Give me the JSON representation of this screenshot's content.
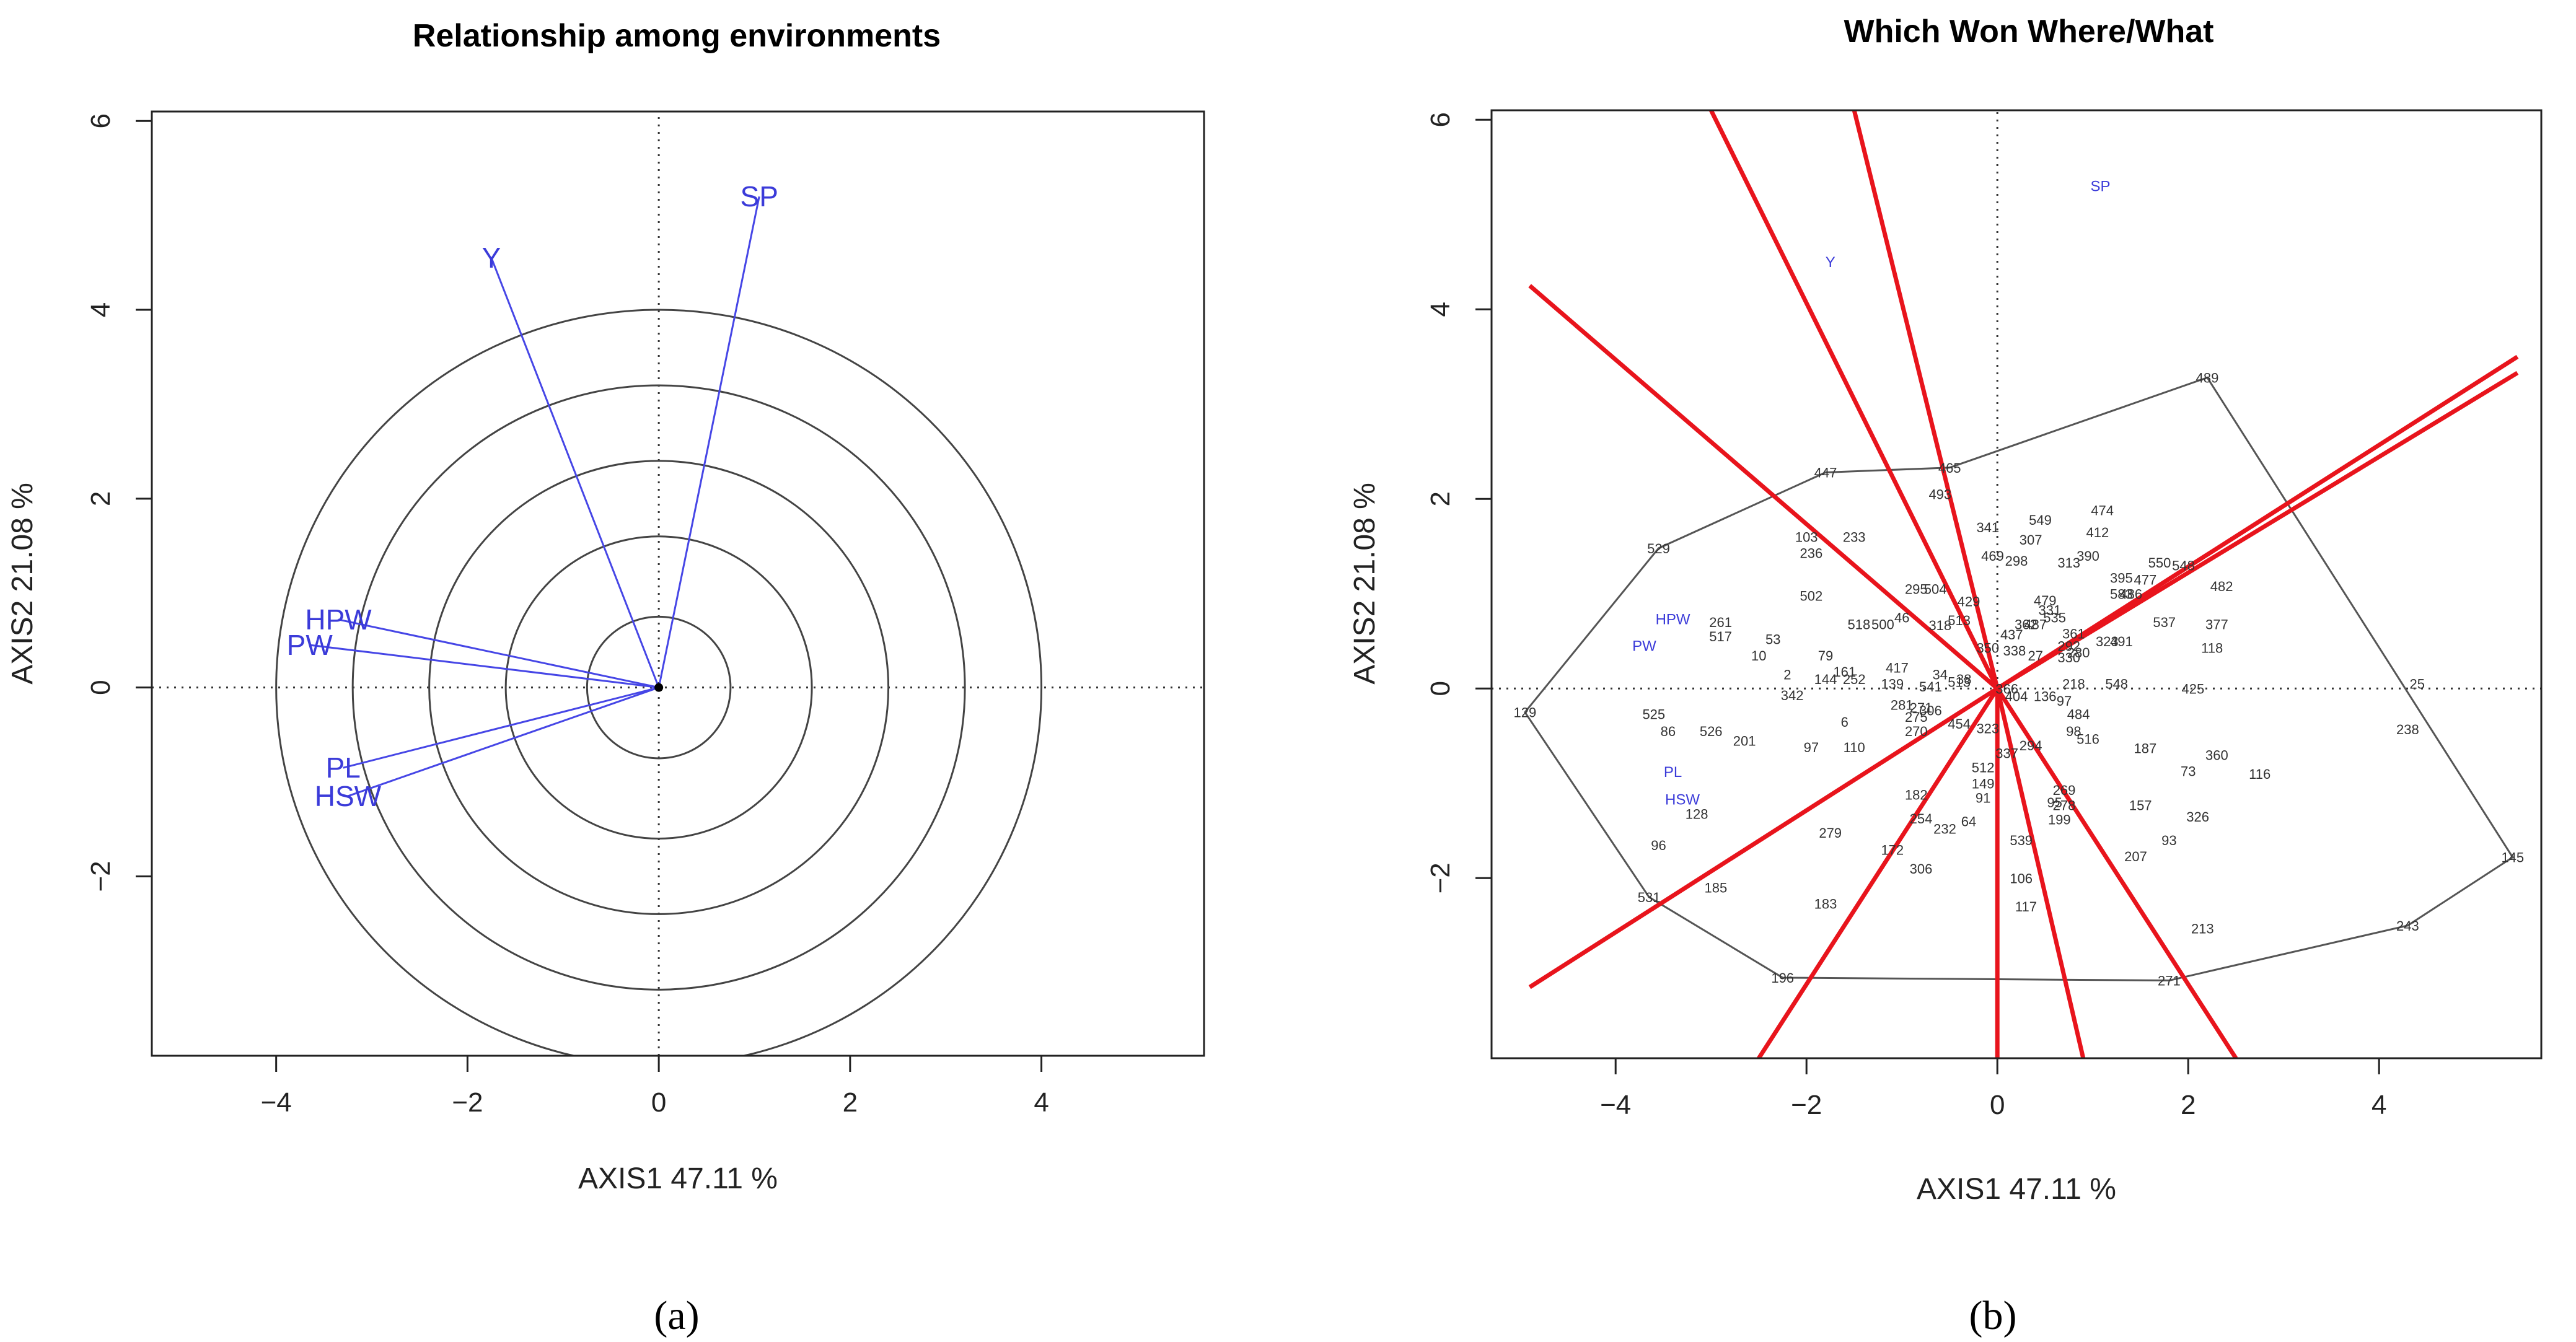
{
  "colors": {
    "env": "#4646e6",
    "sector": "#e8141c",
    "circle": "#444444",
    "frame": "#222222",
    "hull": "#555555"
  },
  "chart_data": [
    {
      "id": "a",
      "type": "scatter",
      "title": "Relationship among environments",
      "xlabel": "AXIS1 47.11 %",
      "ylabel": "AXIS2 21.08 %",
      "subfig_label": "(a)",
      "xlim": [
        -5.3,
        5.7
      ],
      "ylim": [
        -3.9,
        6.1
      ],
      "xticks": [
        -4,
        -2,
        0,
        2,
        4
      ],
      "yticks": [
        -2,
        0,
        2,
        4,
        6
      ],
      "circle_radii": [
        0.75,
        1.6,
        2.4,
        3.2,
        4.0
      ],
      "environments": [
        {
          "label": "SP",
          "x": 1.05,
          "y": 5.2
        },
        {
          "label": "Y",
          "x": -1.75,
          "y": 4.55
        },
        {
          "label": "HPW",
          "x": -3.35,
          "y": 0.72
        },
        {
          "label": "PW",
          "x": -3.65,
          "y": 0.45
        },
        {
          "label": "PL",
          "x": -3.3,
          "y": -0.85
        },
        {
          "label": "HSW",
          "x": -3.25,
          "y": -1.15
        }
      ]
    },
    {
      "id": "b",
      "type": "scatter",
      "title": "Which Won Where/What",
      "xlabel": "AXIS1 47.11 %",
      "ylabel": "AXIS2 21.08 %",
      "subfig_label": "(b)",
      "xlim": [
        -5.3,
        5.7
      ],
      "ylim": [
        -3.9,
        6.1
      ],
      "xticks": [
        -4,
        -2,
        0,
        2,
        4
      ],
      "yticks": [
        -2,
        0,
        2,
        4,
        6
      ],
      "environments": [
        {
          "label": "SP",
          "x": 1.08,
          "y": 5.3
        },
        {
          "label": "Y",
          "x": -1.75,
          "y": 4.5
        },
        {
          "label": "HPW",
          "x": -3.4,
          "y": 0.73
        },
        {
          "label": "PW",
          "x": -3.7,
          "y": 0.45
        },
        {
          "label": "PL",
          "x": -3.4,
          "y": -0.88
        },
        {
          "label": "HSW",
          "x": -3.3,
          "y": -1.17
        }
      ],
      "hull": [
        {
          "label": "489",
          "x": 2.2,
          "y": 3.28
        },
        {
          "label": "145",
          "x": 5.4,
          "y": -1.78
        },
        {
          "label": "243",
          "x": 4.3,
          "y": -2.5
        },
        {
          "label": "271",
          "x": 1.8,
          "y": -3.08
        },
        {
          "label": "196",
          "x": -2.25,
          "y": -3.05
        },
        {
          "label": "531",
          "x": -3.65,
          "y": -2.2
        },
        {
          "label": "129",
          "x": -4.95,
          "y": -0.25
        },
        {
          "label": "529",
          "x": -3.55,
          "y": 1.48
        },
        {
          "label": "447",
          "x": -1.8,
          "y": 2.28
        },
        {
          "label": "465",
          "x": -0.5,
          "y": 2.33
        }
      ],
      "sector_rays": [
        {
          "x": -4.9,
          "y": 4.25
        },
        {
          "x": -3.0,
          "y": 6.1
        },
        {
          "x": -1.5,
          "y": 6.1
        },
        {
          "x": 5.45,
          "y": 3.5
        },
        {
          "x": 5.45,
          "y": 3.33
        },
        {
          "x": 2.5,
          "y": -3.9
        },
        {
          "x": 0.9,
          "y": -3.9
        },
        {
          "x": 0.0,
          "y": -3.9
        },
        {
          "x": -2.5,
          "y": -3.9
        },
        {
          "x": -4.9,
          "y": -3.15
        }
      ],
      "genotypes": [
        {
          "label": "489",
          "x": 2.2,
          "y": 3.28
        },
        {
          "label": "145",
          "x": 5.4,
          "y": -1.78
        },
        {
          "label": "243",
          "x": 4.3,
          "y": -2.5
        },
        {
          "label": "271",
          "x": 1.8,
          "y": -3.08
        },
        {
          "label": "196",
          "x": -2.25,
          "y": -3.05
        },
        {
          "label": "531",
          "x": -3.65,
          "y": -2.2
        },
        {
          "label": "129",
          "x": -4.95,
          "y": -0.25
        },
        {
          "label": "529",
          "x": -3.55,
          "y": 1.48
        },
        {
          "label": "447",
          "x": -1.8,
          "y": 2.28
        },
        {
          "label": "465",
          "x": -0.5,
          "y": 2.33
        },
        {
          "label": "493",
          "x": -0.6,
          "y": 2.05
        },
        {
          "label": "549",
          "x": 0.45,
          "y": 1.78
        },
        {
          "label": "474",
          "x": 1.1,
          "y": 1.88
        },
        {
          "label": "341",
          "x": -0.1,
          "y": 1.7
        },
        {
          "label": "412",
          "x": 1.05,
          "y": 1.65
        },
        {
          "label": "307",
          "x": 0.35,
          "y": 1.57
        },
        {
          "label": "103",
          "x": -2.0,
          "y": 1.6
        },
        {
          "label": "233",
          "x": -1.5,
          "y": 1.6
        },
        {
          "label": "236",
          "x": -1.95,
          "y": 1.43
        },
        {
          "label": "469",
          "x": -0.05,
          "y": 1.4
        },
        {
          "label": "298",
          "x": 0.2,
          "y": 1.35
        },
        {
          "label": "313",
          "x": 0.75,
          "y": 1.33
        },
        {
          "label": "390",
          "x": 0.95,
          "y": 1.4
        },
        {
          "label": "550",
          "x": 1.7,
          "y": 1.33
        },
        {
          "label": "548",
          "x": 1.95,
          "y": 1.3
        },
        {
          "label": "395",
          "x": 1.3,
          "y": 1.17
        },
        {
          "label": "477",
          "x": 1.55,
          "y": 1.15
        },
        {
          "label": "482",
          "x": 2.35,
          "y": 1.08
        },
        {
          "label": "502",
          "x": -1.95,
          "y": 0.98
        },
        {
          "label": "295",
          "x": -0.85,
          "y": 1.05
        },
        {
          "label": "504",
          "x": -0.65,
          "y": 1.05
        },
        {
          "label": "429",
          "x": -0.3,
          "y": 0.92
        },
        {
          "label": "479",
          "x": 0.5,
          "y": 0.93
        },
        {
          "label": "583",
          "x": 1.3,
          "y": 1.0
        },
        {
          "label": "486",
          "x": 1.4,
          "y": 1.0
        },
        {
          "label": "331",
          "x": 0.55,
          "y": 0.83
        },
        {
          "label": "535",
          "x": 0.6,
          "y": 0.75
        },
        {
          "label": "537",
          "x": 1.75,
          "y": 0.7
        },
        {
          "label": "377",
          "x": 2.3,
          "y": 0.68
        },
        {
          "label": "261",
          "x": -2.9,
          "y": 0.7
        },
        {
          "label": "517",
          "x": -2.9,
          "y": 0.55
        },
        {
          "label": "518",
          "x": -1.45,
          "y": 0.68
        },
        {
          "label": "500",
          "x": -1.2,
          "y": 0.68
        },
        {
          "label": "46",
          "x": -1.0,
          "y": 0.75
        },
        {
          "label": "318",
          "x": -0.6,
          "y": 0.67
        },
        {
          "label": "513",
          "x": -0.4,
          "y": 0.72
        },
        {
          "label": "362",
          "x": 0.3,
          "y": 0.68
        },
        {
          "label": "487",
          "x": 0.4,
          "y": 0.68
        },
        {
          "label": "437",
          "x": 0.15,
          "y": 0.57
        },
        {
          "label": "361",
          "x": 0.8,
          "y": 0.58
        },
        {
          "label": "323",
          "x": 1.15,
          "y": 0.5
        },
        {
          "label": "491",
          "x": 1.3,
          "y": 0.5
        },
        {
          "label": "53",
          "x": -2.35,
          "y": 0.52
        },
        {
          "label": "118",
          "x": 2.25,
          "y": 0.43
        },
        {
          "label": "350",
          "x": -0.1,
          "y": 0.43
        },
        {
          "label": "338",
          "x": 0.18,
          "y": 0.4
        },
        {
          "label": "27",
          "x": 0.4,
          "y": 0.35
        },
        {
          "label": "292",
          "x": 0.75,
          "y": 0.45
        },
        {
          "label": "280",
          "x": 0.85,
          "y": 0.38
        },
        {
          "label": "330",
          "x": 0.75,
          "y": 0.33
        },
        {
          "label": "10",
          "x": -2.5,
          "y": 0.35
        },
        {
          "label": "79",
          "x": -1.8,
          "y": 0.35
        },
        {
          "label": "161",
          "x": -1.6,
          "y": 0.18
        },
        {
          "label": "417",
          "x": -1.05,
          "y": 0.22
        },
        {
          "label": "2",
          "x": -2.2,
          "y": 0.15
        },
        {
          "label": "144",
          "x": -1.8,
          "y": 0.1
        },
        {
          "label": "252",
          "x": -1.5,
          "y": 0.1
        },
        {
          "label": "139",
          "x": -1.1,
          "y": 0.05
        },
        {
          "label": "34",
          "x": -0.6,
          "y": 0.15
        },
        {
          "label": "513",
          "x": -0.4,
          "y": 0.07
        },
        {
          "label": "541",
          "x": -0.7,
          "y": 0.02
        },
        {
          "label": "38",
          "x": -0.35,
          "y": 0.1
        },
        {
          "label": "218",
          "x": 0.8,
          "y": 0.05
        },
        {
          "label": "548",
          "x": 1.25,
          "y": 0.05
        },
        {
          "label": "425",
          "x": 2.05,
          "y": 0.0
        },
        {
          "label": "25",
          "x": 4.4,
          "y": 0.05
        },
        {
          "label": "342",
          "x": -2.15,
          "y": -0.07
        },
        {
          "label": "366",
          "x": 0.1,
          "y": 0.0
        },
        {
          "label": "404",
          "x": 0.2,
          "y": -0.08
        },
        {
          "label": "136",
          "x": 0.5,
          "y": -0.08
        },
        {
          "label": "97",
          "x": 0.7,
          "y": -0.13
        },
        {
          "label": "281",
          "x": -1.0,
          "y": -0.17
        },
        {
          "label": "271",
          "x": -0.8,
          "y": -0.2
        },
        {
          "label": "306",
          "x": -0.7,
          "y": -0.23
        },
        {
          "label": "525",
          "x": -3.6,
          "y": -0.27
        },
        {
          "label": "484",
          "x": 0.85,
          "y": -0.27
        },
        {
          "label": "6",
          "x": -1.6,
          "y": -0.35
        },
        {
          "label": "275",
          "x": -0.85,
          "y": -0.3
        },
        {
          "label": "454",
          "x": -0.4,
          "y": -0.37
        },
        {
          "label": "323",
          "x": -0.1,
          "y": -0.42
        },
        {
          "label": "86",
          "x": -3.45,
          "y": -0.45
        },
        {
          "label": "526",
          "x": -3.0,
          "y": -0.45
        },
        {
          "label": "201",
          "x": -2.65,
          "y": -0.55
        },
        {
          "label": "270",
          "x": -0.85,
          "y": -0.45
        },
        {
          "label": "98",
          "x": 0.8,
          "y": -0.45
        },
        {
          "label": "516",
          "x": 0.95,
          "y": -0.53
        },
        {
          "label": "238",
          "x": 4.3,
          "y": -0.43
        },
        {
          "label": "97",
          "x": -1.95,
          "y": -0.62
        },
        {
          "label": "110",
          "x": -1.5,
          "y": -0.62
        },
        {
          "label": "294",
          "x": 0.35,
          "y": -0.6
        },
        {
          "label": "187",
          "x": 1.55,
          "y": -0.63
        },
        {
          "label": "337",
          "x": 0.1,
          "y": -0.68
        },
        {
          "label": "360",
          "x": 2.3,
          "y": -0.7
        },
        {
          "label": "512",
          "x": -0.15,
          "y": -0.83
        },
        {
          "label": "73",
          "x": 2.0,
          "y": -0.87
        },
        {
          "label": "116",
          "x": 2.75,
          "y": -0.9
        },
        {
          "label": "149",
          "x": -0.15,
          "y": -1.0
        },
        {
          "label": "269",
          "x": 0.7,
          "y": -1.07
        },
        {
          "label": "182",
          "x": -0.85,
          "y": -1.12
        },
        {
          "label": "91",
          "x": -0.15,
          "y": -1.15
        },
        {
          "label": "95",
          "x": 0.6,
          "y": -1.2
        },
        {
          "label": "278",
          "x": 0.7,
          "y": -1.23
        },
        {
          "label": "157",
          "x": 1.5,
          "y": -1.23
        },
        {
          "label": "254",
          "x": -0.8,
          "y": -1.37
        },
        {
          "label": "199",
          "x": 0.65,
          "y": -1.38
        },
        {
          "label": "326",
          "x": 2.1,
          "y": -1.35
        },
        {
          "label": "64",
          "x": -0.3,
          "y": -1.4
        },
        {
          "label": "232",
          "x": -0.55,
          "y": -1.48
        },
        {
          "label": "279",
          "x": -1.75,
          "y": -1.52
        },
        {
          "label": "539",
          "x": 0.25,
          "y": -1.6
        },
        {
          "label": "93",
          "x": 1.8,
          "y": -1.6
        },
        {
          "label": "207",
          "x": 1.45,
          "y": -1.77
        },
        {
          "label": "172",
          "x": -1.1,
          "y": -1.7
        },
        {
          "label": "306",
          "x": -0.8,
          "y": -1.9
        },
        {
          "label": "106",
          "x": 0.25,
          "y": -2.0
        },
        {
          "label": "185",
          "x": -2.95,
          "y": -2.1
        },
        {
          "label": "183",
          "x": -1.8,
          "y": -2.27
        },
        {
          "label": "117",
          "x": 0.3,
          "y": -2.3
        },
        {
          "label": "213",
          "x": 2.15,
          "y": -2.53
        },
        {
          "label": "96",
          "x": -3.55,
          "y": -1.65
        },
        {
          "label": "128",
          "x": -3.15,
          "y": -1.32
        }
      ]
    }
  ]
}
